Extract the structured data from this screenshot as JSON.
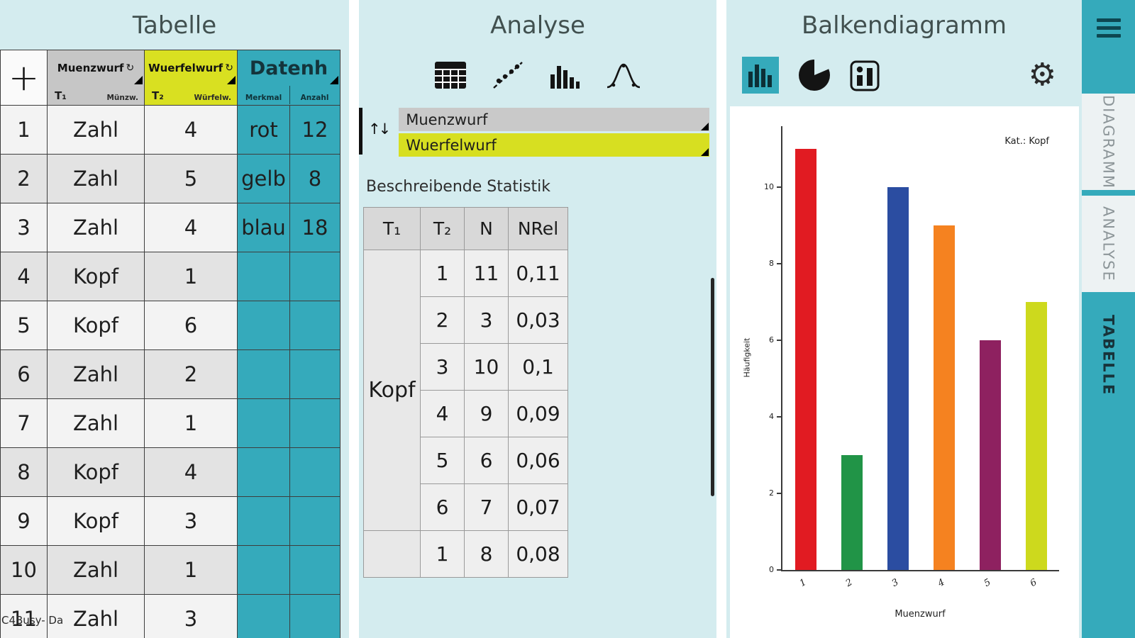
{
  "glyphs": {
    "refresh": "↻",
    "sort": "↑↓",
    "settings": "⚙",
    "add": "+"
  },
  "colors": {
    "panel_bg": "#d4ecef",
    "accent_teal": "#35aabb",
    "highlight_yellow": "#d7df21",
    "header_gray": "#c6c6c6"
  },
  "left_panel": {
    "title": "Tabelle",
    "columns": {
      "muenzwurf": {
        "label": "Muenzwurf",
        "sub_left": "T₁",
        "sub_right": "Münzw."
      },
      "wuerfelwurf": {
        "label": "Wuerfelwurf",
        "sub_left": "T₂",
        "sub_right": "Würfelw."
      },
      "datenh": {
        "label": "Datenh",
        "sub_left": "Merkmal",
        "sub_right": "Anzahl"
      }
    },
    "rows": [
      {
        "n": "1",
        "muenzwurf": "Zahl",
        "wuerfelwurf": "4",
        "merkmal": "rot",
        "anzahl": "12"
      },
      {
        "n": "2",
        "muenzwurf": "Zahl",
        "wuerfelwurf": "5",
        "merkmal": "gelb",
        "anzahl": "8"
      },
      {
        "n": "3",
        "muenzwurf": "Zahl",
        "wuerfelwurf": "4",
        "merkmal": "blau",
        "anzahl": "18"
      },
      {
        "n": "4",
        "muenzwurf": "Kopf",
        "wuerfelwurf": "1",
        "merkmal": "",
        "anzahl": ""
      },
      {
        "n": "5",
        "muenzwurf": "Kopf",
        "wuerfelwurf": "6",
        "merkmal": "",
        "anzahl": ""
      },
      {
        "n": "6",
        "muenzwurf": "Zahl",
        "wuerfelwurf": "2",
        "merkmal": "",
        "anzahl": ""
      },
      {
        "n": "7",
        "muenzwurf": "Zahl",
        "wuerfelwurf": "1",
        "merkmal": "",
        "anzahl": ""
      },
      {
        "n": "8",
        "muenzwurf": "Kopf",
        "wuerfelwurf": "4",
        "merkmal": "",
        "anzahl": ""
      },
      {
        "n": "9",
        "muenzwurf": "Kopf",
        "wuerfelwurf": "3",
        "merkmal": "",
        "anzahl": ""
      },
      {
        "n": "10",
        "muenzwurf": "Zahl",
        "wuerfelwurf": "1",
        "merkmal": "",
        "anzahl": ""
      },
      {
        "n": "11",
        "muenzwurf": "Zahl",
        "wuerfelwurf": "3",
        "merkmal": "",
        "anzahl": ""
      }
    ],
    "watermark": "C4Busy- Da"
  },
  "middle_panel": {
    "title": "Analyse",
    "toolbar_icons": [
      "table-view-icon",
      "scatter-plot-icon",
      "bar-chart-view-icon",
      "distribution-curve-icon"
    ],
    "selectors": [
      {
        "label": "Muenzwurf",
        "color": "#c9c9c9"
      },
      {
        "label": "Wuerfelwurf",
        "color": "#d7df21"
      }
    ],
    "subtitle": "Beschreibende Statistik",
    "stats_table": {
      "headers": [
        "T₁",
        "T₂",
        "N",
        "NRel"
      ],
      "groups": [
        {
          "label": "Kopf",
          "rows": [
            [
              "1",
              "11",
              "0,11"
            ],
            [
              "2",
              "3",
              "0,03"
            ],
            [
              "3",
              "10",
              "0,1"
            ],
            [
              "4",
              "9",
              "0,09"
            ],
            [
              "5",
              "6",
              "0,06"
            ],
            [
              "6",
              "7",
              "0,07"
            ]
          ]
        },
        {
          "label": "",
          "rows": [
            [
              "1",
              "8",
              "0,08"
            ]
          ]
        }
      ]
    }
  },
  "right_panel": {
    "title": "Balkendiagramm",
    "toolbar_icons": [
      "bar-chart-type-icon",
      "pie-chart-type-icon",
      "histogram-type-icon",
      "settings-icon"
    ]
  },
  "chart_data": {
    "type": "bar",
    "categories": [
      "1",
      "2",
      "3",
      "4",
      "5",
      "6"
    ],
    "values": [
      11,
      3,
      10,
      9,
      6,
      7
    ],
    "colors": [
      "#e11b22",
      "#219447",
      "#2b4da1",
      "#f58220",
      "#8e2160",
      "#cdd91d"
    ],
    "title": "",
    "xlabel": "Muenzwurf",
    "ylabel": "Häufigkeit",
    "annotation": "Kat.: Kopf",
    "ylim": [
      0,
      11.6
    ],
    "yticks": [
      0,
      2,
      4,
      6,
      8,
      10
    ],
    "grid": false,
    "legend": "none"
  },
  "rail": {
    "tabs": [
      {
        "label": "DIAGRAMM",
        "active": false
      },
      {
        "label": "ANALYSE",
        "active": false
      },
      {
        "label": "TABELLE",
        "active": true
      }
    ]
  }
}
